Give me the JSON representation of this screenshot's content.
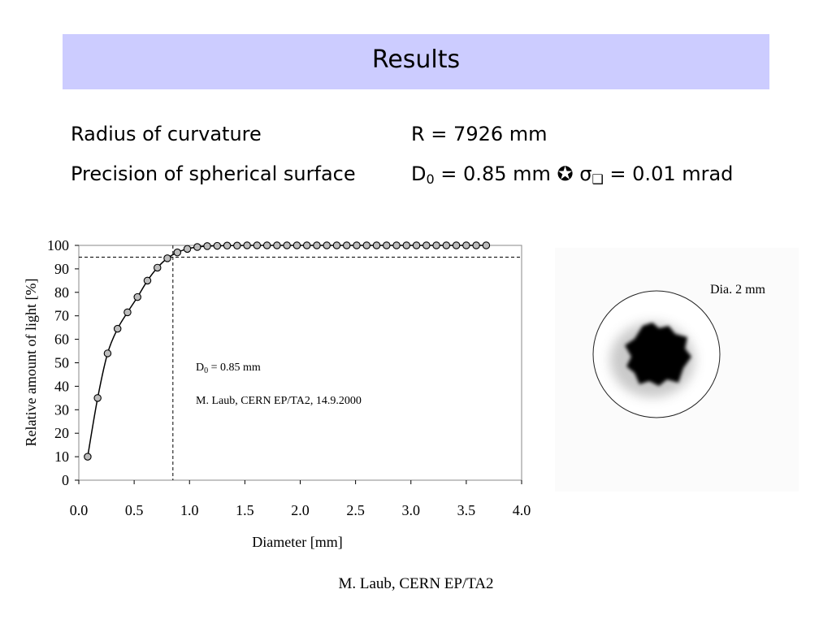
{
  "slide": {
    "title": "Results",
    "specs": [
      {
        "label": "Radius of curvature",
        "value": "R = 7926 mm"
      },
      {
        "label": "Precision of spherical surface",
        "value_prefix": "D",
        "value_sub": "0",
        "value_mid": " = 0.85 mm ",
        "value_symbol": "✪",
        "value_sigma": " σ",
        "value_sigma_sub": "❑",
        "value_tail": " = 0.01 mrad"
      }
    ],
    "footer": "M. Laub, CERN EP/TA2"
  },
  "image": {
    "label": "Dia. 2 mm"
  },
  "chart_data": {
    "type": "scatter",
    "xlabel": "Diameter [mm]",
    "ylabel": "Relative amount of light [%]",
    "xlim": [
      0.0,
      4.0
    ],
    "ylim": [
      0,
      100
    ],
    "x_ticks": [
      "0.0",
      "0.5",
      "1.0",
      "1.5",
      "2.0",
      "2.5",
      "3.0",
      "3.5",
      "4.0"
    ],
    "y_ticks": [
      "0",
      "10",
      "20",
      "30",
      "40",
      "50",
      "60",
      "70",
      "80",
      "90",
      "100"
    ],
    "annotation_d0_prefix": "D",
    "annotation_d0_sub": "0",
    "annotation_d0_value": " =  0.85 mm",
    "annotation_credit": "M. Laub, CERN EP/TA2, 14.9.2000",
    "reference_x": 0.85,
    "reference_y": 95,
    "series": [
      {
        "x": [
          0.08,
          0.17,
          0.26,
          0.35,
          0.44,
          0.53,
          0.62,
          0.71,
          0.8,
          0.89,
          0.98,
          1.07,
          1.16,
          1.25,
          1.34,
          1.43,
          1.52,
          1.61,
          1.7,
          1.79,
          1.88,
          1.97,
          2.06,
          2.15,
          2.24,
          2.33,
          2.42,
          2.51,
          2.6,
          2.69,
          2.78,
          2.87,
          2.96,
          3.05,
          3.14,
          3.23,
          3.32,
          3.41,
          3.5,
          3.59,
          3.68
        ],
        "y": [
          10,
          35,
          54,
          64.5,
          71.5,
          78,
          85,
          90.5,
          94.5,
          97,
          98.5,
          99.3,
          99.7,
          99.8,
          99.9,
          99.9,
          100,
          100,
          100,
          100,
          100,
          100,
          100,
          100,
          100,
          100,
          100,
          100,
          100,
          100,
          100,
          100,
          100,
          100,
          100,
          100,
          100,
          100,
          100,
          100,
          100
        ]
      }
    ]
  }
}
